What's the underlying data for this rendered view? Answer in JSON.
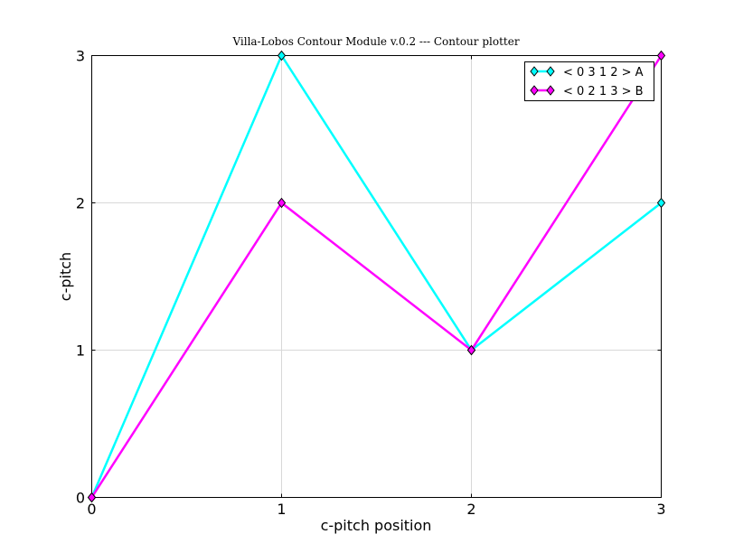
{
  "chart_data": {
    "type": "line",
    "title": "Villa-Lobos Contour Module v.0.2 --- Contour plotter",
    "xlabel": "c-pitch position",
    "ylabel": "c-pitch",
    "x": [
      0,
      1,
      2,
      3
    ],
    "xlim": [
      0,
      3
    ],
    "ylim": [
      0,
      3
    ],
    "xticks": [
      0,
      1,
      2,
      3
    ],
    "yticks": [
      0,
      1,
      2,
      3
    ],
    "xtick_labels": [
      "0",
      "1",
      "2",
      "3"
    ],
    "ytick_labels": [
      "0",
      "1",
      "2",
      "3"
    ],
    "grid": true,
    "legend_position": "top-right",
    "series": [
      {
        "name": "< 0 3 1 2 > A",
        "values": [
          0,
          3,
          1,
          2
        ],
        "color": "#00ffff",
        "marker": "diamond"
      },
      {
        "name": "< 0 2 1 3 > B",
        "values": [
          0,
          2,
          1,
          3
        ],
        "color": "#ff00ff",
        "marker": "diamond"
      }
    ]
  }
}
